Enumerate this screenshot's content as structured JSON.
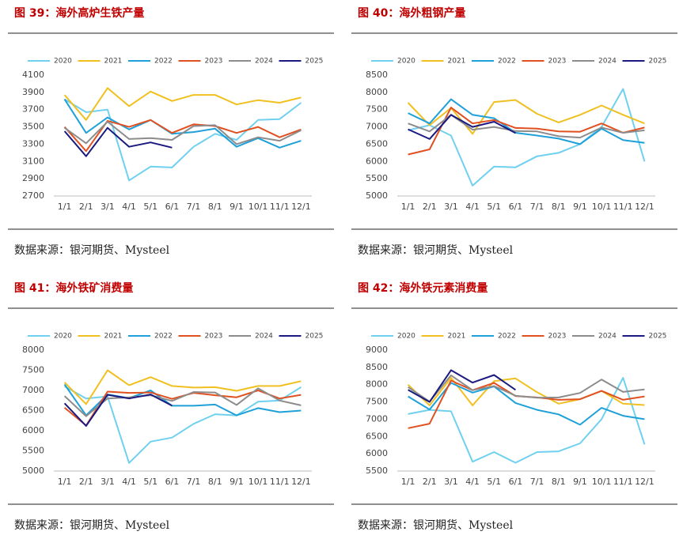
{
  "chart_data": [
    {
      "type": "line",
      "title": "图 39：海外高炉生铁产量",
      "source": "数据来源：银河期货、Mysteel",
      "categories": [
        "1/1",
        "2/1",
        "3/1",
        "4/1",
        "5/1",
        "6/1",
        "7/1",
        "8/1",
        "9/1",
        "10/1",
        "11/1",
        "12/1"
      ],
      "ylim": [
        2700,
        4100
      ],
      "yticks": [
        2700,
        2900,
        3100,
        3300,
        3500,
        3700,
        3900,
        4100
      ],
      "series": [
        {
          "name": "2020",
          "color": "#6fd0f0",
          "values": [
            3820,
            3670,
            3700,
            2880,
            3040,
            3030,
            3270,
            3420,
            3350,
            3580,
            3590,
            3780
          ]
        },
        {
          "name": "2021",
          "color": "#f0c020",
          "values": [
            3870,
            3580,
            3950,
            3740,
            3910,
            3800,
            3870,
            3870,
            3760,
            3810,
            3780,
            3840
          ]
        },
        {
          "name": "2022",
          "color": "#1ea0d8",
          "values": [
            3820,
            3430,
            3610,
            3470,
            3580,
            3420,
            3440,
            3480,
            3270,
            3370,
            3260,
            3340
          ]
        },
        {
          "name": "2023",
          "color": "#e05020",
          "values": [
            3500,
            3220,
            3570,
            3500,
            3580,
            3430,
            3530,
            3510,
            3430,
            3500,
            3380,
            3470
          ]
        },
        {
          "name": "2024",
          "color": "#8c8c8c",
          "values": [
            3490,
            3310,
            3560,
            3360,
            3370,
            3350,
            3510,
            3520,
            3300,
            3380,
            3340,
            3460
          ]
        },
        {
          "name": "2025",
          "color": "#1a1a80",
          "values": [
            3450,
            3160,
            3490,
            3270,
            3320,
            3260,
            null,
            null,
            null,
            null,
            null,
            null
          ]
        }
      ]
    },
    {
      "type": "line",
      "title": "图 40：海外粗钢产量",
      "source": "数据来源：银河期货、Mysteel",
      "categories": [
        "1/1",
        "2/1",
        "3/1",
        "4/1",
        "5/1",
        "6/1",
        "7/1",
        "8/1",
        "9/1",
        "10/1",
        "11/1",
        "12/1"
      ],
      "ylim": [
        5000,
        8500
      ],
      "yticks": [
        5000,
        5500,
        6000,
        6500,
        7000,
        7500,
        8000,
        8500
      ],
      "series": [
        {
          "name": "2020",
          "color": "#6fd0f0",
          "values": [
            6900,
            7050,
            6750,
            5300,
            5850,
            5830,
            6150,
            6250,
            6500,
            7000,
            8100,
            6000
          ]
        },
        {
          "name": "2021",
          "color": "#f0c020",
          "values": [
            7700,
            7050,
            7550,
            6800,
            7720,
            7780,
            7380,
            7130,
            7350,
            7620,
            7350,
            7100
          ]
        },
        {
          "name": "2022",
          "color": "#1ea0d8",
          "values": [
            7400,
            7100,
            7800,
            7350,
            7250,
            6830,
            6750,
            6660,
            6500,
            6950,
            6620,
            6540
          ]
        },
        {
          "name": "2023",
          "color": "#e05020",
          "values": [
            6200,
            6350,
            7560,
            7100,
            7200,
            6970,
            6950,
            6870,
            6860,
            7100,
            6830,
            6980
          ]
        },
        {
          "name": "2024",
          "color": "#8c8c8c",
          "values": [
            7100,
            6870,
            7350,
            6920,
            7000,
            6880,
            6870,
            6730,
            6690,
            6980,
            6830,
            6900
          ]
        },
        {
          "name": "2025",
          "color": "#1a1a80",
          "values": [
            6930,
            6650,
            7350,
            7000,
            7150,
            6820,
            null,
            null,
            null,
            null,
            null,
            null
          ]
        }
      ]
    },
    {
      "type": "line",
      "title": "图 41：海外铁矿消费量",
      "source": "数据来源：银河期货、Mysteel",
      "categories": [
        "1/1",
        "2/1",
        "3/1",
        "4/1",
        "5/1",
        "6/1",
        "7/1",
        "8/1",
        "9/1",
        "10/1",
        "11/1",
        "12/1"
      ],
      "ylim": [
        5000,
        8000
      ],
      "yticks": [
        5000,
        5500,
        6000,
        6500,
        7000,
        7500,
        8000
      ],
      "series": [
        {
          "name": "2020",
          "color": "#6fd0f0",
          "values": [
            7100,
            6800,
            6850,
            5200,
            5730,
            5830,
            6170,
            6410,
            6380,
            6720,
            6750,
            7080
          ]
        },
        {
          "name": "2021",
          "color": "#f0c020",
          "values": [
            7200,
            6660,
            7500,
            7130,
            7330,
            7110,
            7070,
            7080,
            6990,
            7110,
            7110,
            7230
          ]
        },
        {
          "name": "2022",
          "color": "#1ea0d8",
          "values": [
            7150,
            6380,
            6900,
            6810,
            7000,
            6620,
            6620,
            6650,
            6380,
            6560,
            6460,
            6500
          ]
        },
        {
          "name": "2023",
          "color": "#e05020",
          "values": [
            6570,
            6130,
            6970,
            6940,
            6950,
            6790,
            6940,
            6880,
            6830,
            7000,
            6800,
            6890
          ]
        },
        {
          "name": "2024",
          "color": "#8c8c8c",
          "values": [
            6860,
            6360,
            6800,
            6830,
            6880,
            6740,
            6960,
            6950,
            6640,
            7050,
            6750,
            6630
          ]
        },
        {
          "name": "2025",
          "color": "#1a1a80",
          "values": [
            6680,
            6120,
            6890,
            6800,
            6900,
            6620,
            null,
            null,
            null,
            null,
            null,
            null
          ]
        }
      ]
    },
    {
      "type": "line",
      "title": "图 42：海外铁元素消费量",
      "source": "数据来源：银河期货、Mysteel",
      "categories": [
        "1/1",
        "2/1",
        "3/1",
        "4/1",
        "5/1",
        "6/1",
        "7/1",
        "8/1",
        "9/1",
        "10/1",
        "11/1",
        "12/1"
      ],
      "ylim": [
        5500,
        9000
      ],
      "yticks": [
        5500,
        6000,
        6500,
        7000,
        7500,
        8000,
        8500,
        9000
      ],
      "series": [
        {
          "name": "2020",
          "color": "#6fd0f0",
          "values": [
            7150,
            7270,
            7230,
            5770,
            6050,
            5740,
            6050,
            6070,
            6300,
            7000,
            8200,
            6270
          ]
        },
        {
          "name": "2021",
          "color": "#f0c020",
          "values": [
            8000,
            7400,
            8200,
            7400,
            8100,
            8180,
            7780,
            7450,
            7580,
            7820,
            7450,
            7410
          ]
        },
        {
          "name": "2022",
          "color": "#1ea0d8",
          "values": [
            7660,
            7280,
            8050,
            7770,
            7950,
            7470,
            7270,
            7140,
            6840,
            7330,
            7100,
            7000
          ]
        },
        {
          "name": "2023",
          "color": "#e05020",
          "values": [
            6740,
            6870,
            8120,
            7840,
            8050,
            7670,
            7630,
            7560,
            7580,
            7820,
            7560,
            7660
          ]
        },
        {
          "name": "2024",
          "color": "#8c8c8c",
          "values": [
            7930,
            7510,
            8270,
            7840,
            7960,
            7680,
            7620,
            7630,
            7760,
            8150,
            7790,
            7860
          ]
        },
        {
          "name": "2025",
          "color": "#1a1a80",
          "values": [
            7850,
            7500,
            8420,
            8060,
            8280,
            7850,
            null,
            null,
            null,
            null,
            null,
            null
          ]
        }
      ]
    }
  ]
}
